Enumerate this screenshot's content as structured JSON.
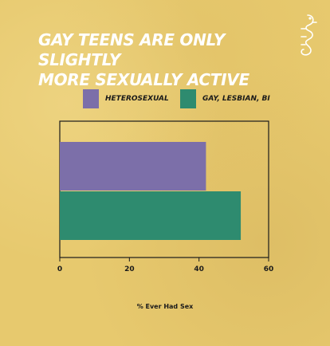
{
  "title_lines": [
    "GAY TEENS ARE ONLY SLIGHTLY",
    "MORE SEXUALLY ACTIVE"
  ],
  "logo_icon": "seahorse-icon",
  "colors": {
    "background": "#e7c96e",
    "heterosexual": "#7c6fa9",
    "gay_lesbian_bi": "#2e8b6f",
    "axis": "#1a1a1a"
  },
  "legend": [
    {
      "label": "HETEROSEXUAL",
      "color": "#7c6fa9"
    },
    {
      "label": "GAY, LESBIAN, BI",
      "color": "#2e8b6f"
    }
  ],
  "chart_data": {
    "type": "bar",
    "orientation": "horizontal",
    "title": "GAY TEENS ARE ONLY SLIGHTLY MORE SEXUALLY ACTIVE",
    "xlabel": "% Ever Had Sex",
    "ylabel": "",
    "xlim": [
      0,
      60
    ],
    "xticks": [
      "0",
      "20",
      "40",
      "60"
    ],
    "series": [
      {
        "name": "HETEROSEXUAL",
        "values": [
          42
        ]
      },
      {
        "name": "GAY, LESBIAN, BI",
        "values": [
          52
        ]
      }
    ],
    "grid": false,
    "legend_position": "top"
  }
}
